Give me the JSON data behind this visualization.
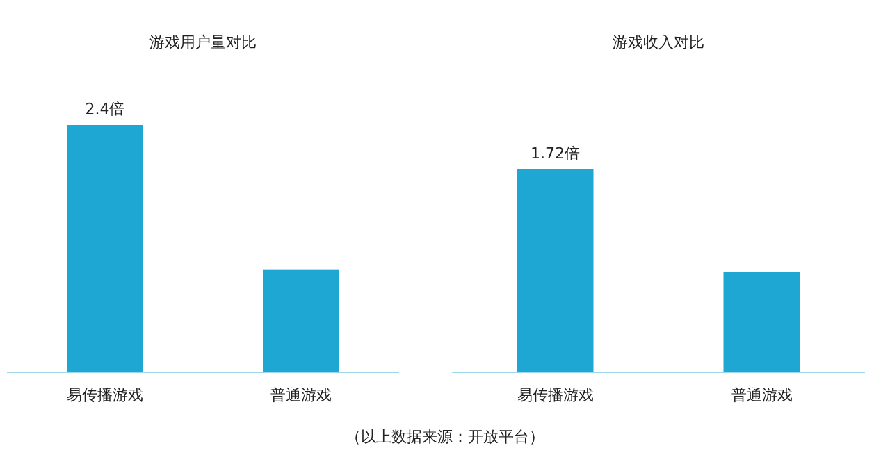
{
  "chart_data": [
    {
      "type": "bar",
      "title": "游戏用户量对比",
      "categories": [
        "易传播游戏",
        "普通游戏"
      ],
      "values": [
        2.4,
        1
      ],
      "value_labels": [
        "2.4倍",
        null
      ],
      "color": "#1ea7d3",
      "annotations": [
        "（以上数据来源：开放平台）"
      ]
    },
    {
      "type": "bar",
      "title": "游戏收入对比",
      "categories": [
        "易传播游戏",
        "普通游戏"
      ],
      "values": [
        1.72,
        0.85
      ],
      "value_labels": [
        "1.72倍",
        null
      ],
      "color": "#1ea7d3"
    }
  ]
}
